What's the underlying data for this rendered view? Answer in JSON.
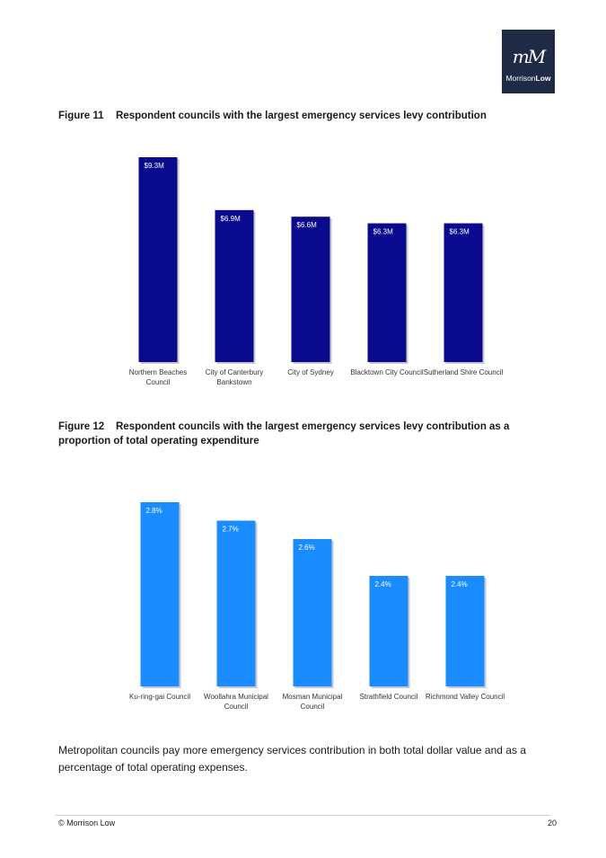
{
  "logo": {
    "mark": "mM",
    "brand_light": "Morrison",
    "brand_bold": "Low"
  },
  "figure11": {
    "number": "Figure 11",
    "title": "Respondent councils with the largest emergency services levy contribution"
  },
  "figure12": {
    "number": "Figure 12",
    "title": "Respondent councils with the largest emergency services levy contribution as a proportion of total operating expenditure"
  },
  "chart_data": [
    {
      "type": "bar",
      "categories": [
        [
          "Northern Beaches",
          "Council"
        ],
        [
          "City of Canterbury",
          "Bankstown"
        ],
        [
          "City of Sydney"
        ],
        [
          "Blacktown City Council"
        ],
        [
          "Sutherland Shire Council"
        ]
      ],
      "values": [
        9.3,
        6.9,
        6.6,
        6.3,
        6.3
      ],
      "data_labels": [
        "$9.3M",
        "$6.9M",
        "$6.6M",
        "$6.3M",
        "$6.3M"
      ],
      "ylim": [
        0,
        9.3
      ],
      "grid": false,
      "color": "#0a0a8f"
    },
    {
      "type": "bar",
      "categories": [
        [
          "Ku-ring-gai Council"
        ],
        [
          "Woollahra Municipal",
          "Council"
        ],
        [
          "Mosman Municipal",
          "Council"
        ],
        [
          "Strathfield Council"
        ],
        [
          "Richmond Valley Council"
        ]
      ],
      "values": [
        2.8,
        2.7,
        2.6,
        2.4,
        2.4
      ],
      "data_labels": [
        "2.8%",
        "2.7%",
        "2.6%",
        "2.4%",
        "2.4%"
      ],
      "ylim": [
        1.8,
        2.8
      ],
      "grid": false,
      "color": "#1a8cff"
    }
  ],
  "body_text": "Metropolitan councils pay more emergency services contribution in both total dollar value and as a percentage of total operating expenses.",
  "footer": {
    "left": "© Morrison Low",
    "right": "20"
  }
}
